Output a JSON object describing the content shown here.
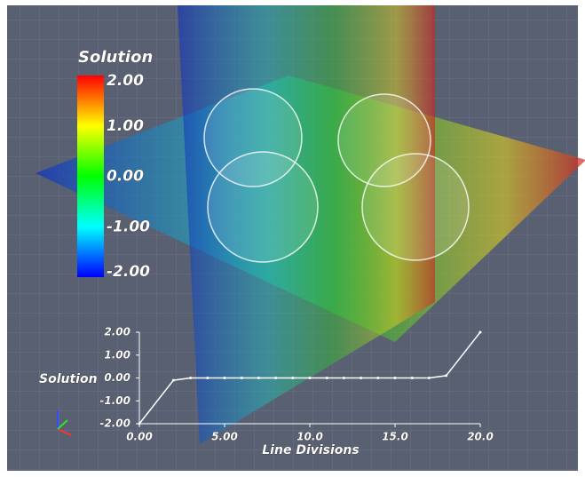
{
  "chart_data": [
    {
      "type": "colorbar",
      "title": "Solution",
      "range": [
        -2,
        2
      ],
      "colors": [
        "#0000ff",
        "#00ffff",
        "#00ff00",
        "#ffff00",
        "#ff0000"
      ],
      "ticks": [
        {
          "value": 2,
          "label": "2.00"
        },
        {
          "value": 1,
          "label": "1.00"
        },
        {
          "value": 0,
          "label": "0.00"
        },
        {
          "value": -1,
          "label": "-1.00"
        },
        {
          "value": -2,
          "label": "-2.00"
        }
      ]
    },
    {
      "type": "line",
      "ylabel": "Solution",
      "xlabel": "Line Divisions",
      "color": "#ffffff",
      "x": [
        0,
        2,
        3,
        4,
        5,
        6,
        7,
        8,
        9,
        10,
        11,
        12,
        13,
        14,
        15,
        16,
        17,
        18,
        20
      ],
      "values": [
        -2,
        -0.1,
        0,
        0,
        0,
        0,
        0,
        0,
        0,
        0,
        0,
        0,
        0,
        0,
        0,
        0,
        0,
        0.1,
        2
      ],
      "xlim": [
        0,
        20
      ],
      "ylim": [
        -2,
        2
      ],
      "xticks": [
        {
          "value": 0,
          "label": "0.00"
        },
        {
          "value": 5,
          "label": "5.00"
        },
        {
          "value": 10,
          "label": "10.0"
        },
        {
          "value": 15,
          "label": "15.0"
        },
        {
          "value": 20,
          "label": "20.0"
        }
      ],
      "yticks": [
        {
          "value": 2,
          "label": "2.00"
        },
        {
          "value": 1,
          "label": "1.00"
        },
        {
          "value": 0,
          "label": "0.00"
        },
        {
          "value": -1,
          "label": "-1.00"
        },
        {
          "value": -2,
          "label": "-2.00"
        }
      ]
    }
  ]
}
